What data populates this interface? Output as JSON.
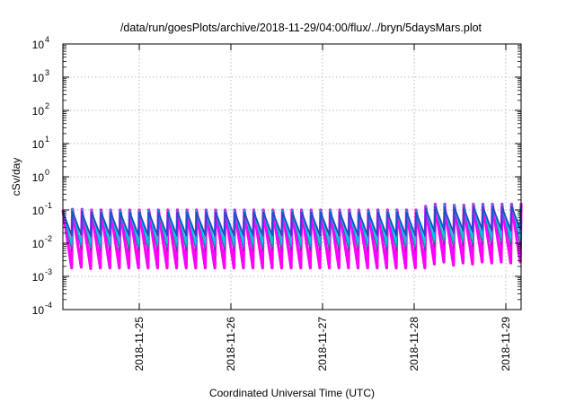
{
  "chart_data": {
    "type": "line",
    "title": "/data/run/goesPlots/archive/2018-11-29/04:00/flux/../bryn/5daysMars.plot",
    "xlabel": "Coordinated Universal Time (UTC)",
    "ylabel": "cSv/day",
    "y_scale": "log",
    "ylim": [
      0.0001,
      10000
    ],
    "xlim": [
      "2018-11-24 04:00",
      "2018-11-29 04:00"
    ],
    "x_ticks": [
      "2018-11-25",
      "2018-11-26",
      "2018-11-27",
      "2018-11-28",
      "2018-11-29"
    ],
    "y_ticks": [
      {
        "base": "10",
        "exp": "-4",
        "value": 0.0001
      },
      {
        "base": "10",
        "exp": "-3",
        "value": 0.001
      },
      {
        "base": "10",
        "exp": "-2",
        "value": 0.01
      },
      {
        "base": "10",
        "exp": "-1",
        "value": 0.1
      },
      {
        "base": "10",
        "exp": "0",
        "value": 1
      },
      {
        "base": "10",
        "exp": "1",
        "value": 10
      },
      {
        "base": "10",
        "exp": "2",
        "value": 100
      },
      {
        "base": "10",
        "exp": "3",
        "value": 1000
      },
      {
        "base": "10",
        "exp": "4",
        "value": 10000
      }
    ],
    "grid": true,
    "legend": "none",
    "pattern": {
      "cycle_hours": 2.5,
      "peak_values": [
        0.1,
        0.105,
        0.095,
        0.1,
        0.1,
        0.1,
        0.1,
        0.1,
        0.1,
        0.1,
        0.1,
        0.1,
        0.1,
        0.1,
        0.1,
        0.1,
        0.1,
        0.1,
        0.1,
        0.1,
        0.1,
        0.1,
        0.1,
        0.1,
        0.1,
        0.1,
        0.1,
        0.1,
        0.1,
        0.1,
        0.1,
        0.1,
        0.1,
        0.1,
        0.1,
        0.1,
        0.1,
        0.1,
        0.13,
        0.15,
        0.12,
        0.14,
        0.13,
        0.15,
        0.14,
        0.15,
        0.14,
        0.15,
        0.14
      ]
    },
    "series": [
      {
        "color": "#e32636",
        "min_value": 0.003,
        "width": 1.2
      },
      {
        "color": "#ff00ff",
        "min_value": 0.0018,
        "width": 3.2
      },
      {
        "color": "#7b2fa0",
        "min_value": 0.006,
        "width": 1.2
      },
      {
        "color": "#00a8a8",
        "min_value": 0.008,
        "width": 1.6
      },
      {
        "color": "#00c8e0",
        "min_value": 0.011,
        "width": 1.6
      },
      {
        "color": "#1e50c8",
        "min_value": 0.02,
        "width": 2.0
      }
    ]
  }
}
